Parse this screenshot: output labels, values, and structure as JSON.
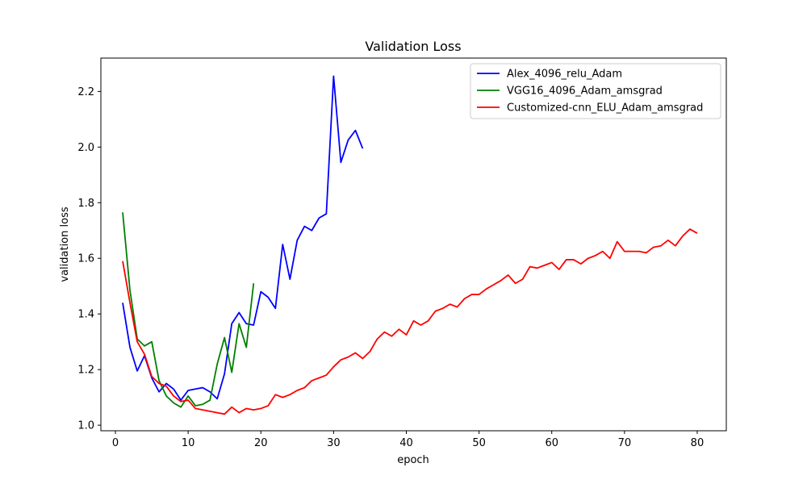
{
  "chart_data": {
    "type": "line",
    "title": "Validation Loss",
    "xlabel": "epoch",
    "ylabel": "validation loss",
    "xlim": [
      -2,
      84
    ],
    "ylim": [
      0.98,
      2.32
    ],
    "xticks": [
      0,
      10,
      20,
      30,
      40,
      50,
      60,
      70,
      80
    ],
    "yticks": [
      1.0,
      1.2,
      1.4,
      1.6,
      1.8,
      2.0,
      2.2
    ],
    "ytick_labels": [
      "1.0",
      "1.2",
      "1.4",
      "1.6",
      "1.8",
      "2.0",
      "2.2"
    ],
    "grid": false,
    "legend": "top-right",
    "series": [
      {
        "name": "Alex_4096_relu_Adam",
        "color": "#0000ff",
        "x": [
          1,
          2,
          3,
          4,
          5,
          6,
          7,
          8,
          9,
          10,
          11,
          12,
          13,
          14,
          15,
          16,
          17,
          18,
          19,
          20,
          21,
          22,
          23,
          24,
          25,
          26,
          27,
          28,
          29,
          30,
          31,
          32,
          33,
          34
        ],
        "values": [
          1.44,
          1.28,
          1.195,
          1.25,
          1.17,
          1.12,
          1.15,
          1.13,
          1.09,
          1.125,
          1.13,
          1.135,
          1.12,
          1.095,
          1.185,
          1.365,
          1.405,
          1.365,
          1.36,
          1.48,
          1.46,
          1.42,
          1.65,
          1.525,
          1.665,
          1.715,
          1.7,
          1.745,
          1.76,
          2.255,
          1.945,
          2.025,
          2.06,
          1.995
        ]
      },
      {
        "name": "VGG16_4096_Adam_amsgrad",
        "color": "#008000",
        "x": [
          1,
          2,
          3,
          4,
          5,
          6,
          7,
          8,
          9,
          10,
          11,
          12,
          13,
          14,
          15,
          16,
          17,
          18,
          19
        ],
        "values": [
          1.765,
          1.485,
          1.31,
          1.285,
          1.3,
          1.16,
          1.105,
          1.08,
          1.065,
          1.105,
          1.07,
          1.075,
          1.09,
          1.22,
          1.315,
          1.19,
          1.365,
          1.28,
          1.51
        ]
      },
      {
        "name": "Customized-cnn_ELU_Adam_amsgrad",
        "color": "#ff0000",
        "x": [
          1,
          2,
          3,
          4,
          5,
          6,
          7,
          8,
          9,
          10,
          11,
          12,
          13,
          14,
          15,
          16,
          17,
          18,
          19,
          20,
          21,
          22,
          23,
          24,
          25,
          26,
          27,
          28,
          29,
          30,
          31,
          32,
          33,
          34,
          35,
          36,
          37,
          38,
          39,
          40,
          41,
          42,
          43,
          44,
          45,
          46,
          47,
          48,
          49,
          50,
          51,
          52,
          53,
          54,
          55,
          56,
          57,
          58,
          59,
          60,
          61,
          62,
          63,
          64,
          65,
          66,
          67,
          68,
          69,
          70,
          71,
          72,
          73,
          74,
          75,
          76,
          77,
          78,
          79,
          80
        ],
        "values": [
          1.59,
          1.44,
          1.3,
          1.255,
          1.175,
          1.15,
          1.14,
          1.105,
          1.085,
          1.09,
          1.06,
          1.055,
          1.05,
          1.045,
          1.04,
          1.065,
          1.045,
          1.06,
          1.055,
          1.06,
          1.07,
          1.11,
          1.1,
          1.11,
          1.125,
          1.135,
          1.16,
          1.17,
          1.18,
          1.21,
          1.235,
          1.245,
          1.26,
          1.24,
          1.265,
          1.31,
          1.335,
          1.32,
          1.345,
          1.325,
          1.375,
          1.36,
          1.375,
          1.41,
          1.42,
          1.435,
          1.425,
          1.455,
          1.47,
          1.47,
          1.49,
          1.505,
          1.52,
          1.54,
          1.51,
          1.525,
          1.57,
          1.565,
          1.575,
          1.585,
          1.56,
          1.595,
          1.595,
          1.58,
          1.6,
          1.61,
          1.625,
          1.6,
          1.66,
          1.625,
          1.625,
          1.625,
          1.62,
          1.64,
          1.645,
          1.665,
          1.645,
          1.68,
          1.705,
          1.69
        ]
      }
    ]
  }
}
